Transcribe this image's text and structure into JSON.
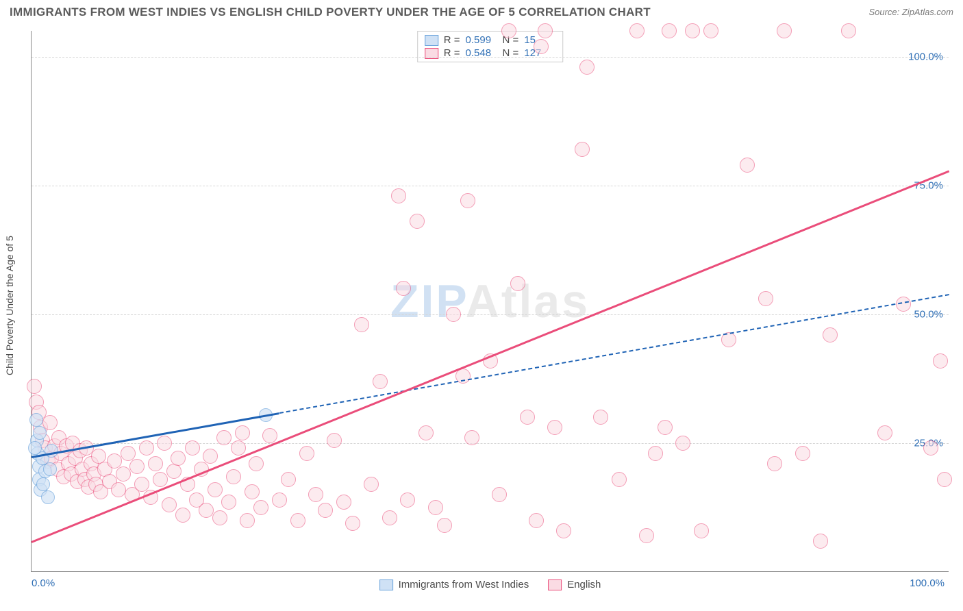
{
  "header": {
    "title": "IMMIGRANTS FROM WEST INDIES VS ENGLISH CHILD POVERTY UNDER THE AGE OF 5 CORRELATION CHART",
    "source_prefix": "Source: ",
    "source_name": "ZipAtlas.com"
  },
  "chart": {
    "type": "scatter",
    "xlim": [
      0,
      100
    ],
    "ylim": [
      0,
      105
    ],
    "ylabel": "Child Poverty Under the Age of 5",
    "grid_color": "#d6d6d6",
    "background_color": "#ffffff",
    "axis_color": "#888888",
    "yticks": [
      {
        "v": 25,
        "label": "25.0%"
      },
      {
        "v": 50,
        "label": "50.0%"
      },
      {
        "v": 75,
        "label": "75.0%"
      },
      {
        "v": 100,
        "label": "100.0%"
      }
    ],
    "xticks": [
      {
        "v": 0,
        "label": "0.0%",
        "align": "left"
      },
      {
        "v": 100,
        "label": "100.0%",
        "align": "right"
      }
    ],
    "watermark": {
      "z": "ZIP",
      "rest": "Atlas"
    },
    "series": [
      {
        "id": "west_indies",
        "label": "Immigrants from West Indies",
        "marker_fill": "#cfe1f5",
        "marker_stroke": "#6aa3dc",
        "marker_opacity": 0.65,
        "marker_r": 10,
        "trend_color": "#1f63b5",
        "trend_solid_end_x": 27,
        "trend_y_at_0": 22.5,
        "trend_y_at_100": 54,
        "R": "0.599",
        "N": "15",
        "points": [
          [
            0.5,
            29.5
          ],
          [
            0.6,
            25.5
          ],
          [
            0.7,
            23
          ],
          [
            0.8,
            20.5
          ],
          [
            0.8,
            18
          ],
          [
            1.0,
            16
          ],
          [
            1.2,
            22
          ],
          [
            1.5,
            19.5
          ],
          [
            1.3,
            17
          ],
          [
            1.8,
            14.5
          ],
          [
            0.4,
            24
          ],
          [
            0.9,
            27
          ],
          [
            2.0,
            20
          ],
          [
            2.2,
            23.5
          ],
          [
            25.5,
            30.5
          ]
        ]
      },
      {
        "id": "english",
        "label": "English",
        "marker_fill": "#fadbe3",
        "marker_stroke": "#ea4d7a",
        "marker_opacity": 0.55,
        "marker_r": 11,
        "trend_color": "#ea4d7a",
        "trend_solid_end_x": 100,
        "trend_y_at_0": 6,
        "trend_y_at_100": 78,
        "R": "0.548",
        "N": "127",
        "points": [
          [
            0.3,
            36
          ],
          [
            0.5,
            33
          ],
          [
            0.8,
            31
          ],
          [
            1.0,
            28
          ],
          [
            1.2,
            25.5
          ],
          [
            1.5,
            24
          ],
          [
            1.8,
            21.5
          ],
          [
            2.0,
            29
          ],
          [
            2.2,
            22
          ],
          [
            2.5,
            24.5
          ],
          [
            2.8,
            20
          ],
          [
            3.0,
            26
          ],
          [
            3.2,
            23
          ],
          [
            3.5,
            18.5
          ],
          [
            3.8,
            24.5
          ],
          [
            4.0,
            21
          ],
          [
            4.3,
            19
          ],
          [
            4.5,
            25
          ],
          [
            4.8,
            22
          ],
          [
            5.0,
            17.5
          ],
          [
            5.3,
            23.5
          ],
          [
            5.5,
            20
          ],
          [
            5.8,
            18
          ],
          [
            6.0,
            24
          ],
          [
            6.2,
            16.5
          ],
          [
            6.5,
            21
          ],
          [
            6.8,
            19
          ],
          [
            7.0,
            17
          ],
          [
            7.3,
            22.5
          ],
          [
            7.5,
            15.5
          ],
          [
            8.0,
            20
          ],
          [
            8.5,
            17.5
          ],
          [
            9.0,
            21.5
          ],
          [
            9.5,
            16
          ],
          [
            10.0,
            19
          ],
          [
            10.5,
            23
          ],
          [
            11.0,
            15
          ],
          [
            11.5,
            20.5
          ],
          [
            12.0,
            17
          ],
          [
            12.5,
            24
          ],
          [
            13.0,
            14.5
          ],
          [
            13.5,
            21
          ],
          [
            14.0,
            18
          ],
          [
            14.5,
            25
          ],
          [
            15.0,
            13
          ],
          [
            15.5,
            19.5
          ],
          [
            16.0,
            22
          ],
          [
            16.5,
            11
          ],
          [
            17.0,
            17
          ],
          [
            17.5,
            24
          ],
          [
            18.0,
            14
          ],
          [
            18.5,
            20
          ],
          [
            19.0,
            12
          ],
          [
            19.5,
            22.5
          ],
          [
            20.0,
            16
          ],
          [
            20.5,
            10.5
          ],
          [
            21.0,
            26
          ],
          [
            21.5,
            13.5
          ],
          [
            22.0,
            18.5
          ],
          [
            22.5,
            24
          ],
          [
            23.0,
            27
          ],
          [
            23.5,
            10
          ],
          [
            24.0,
            15.5
          ],
          [
            24.5,
            21
          ],
          [
            25.0,
            12.5
          ],
          [
            26.0,
            26.5
          ],
          [
            27.0,
            14
          ],
          [
            28.0,
            18
          ],
          [
            29.0,
            10
          ],
          [
            30.0,
            23
          ],
          [
            31.0,
            15
          ],
          [
            32.0,
            12
          ],
          [
            33.0,
            25.5
          ],
          [
            34.0,
            13.5
          ],
          [
            35.0,
            9.5
          ],
          [
            36.0,
            48
          ],
          [
            37.0,
            17
          ],
          [
            38.0,
            37
          ],
          [
            39.0,
            10.5
          ],
          [
            40.0,
            73
          ],
          [
            40.5,
            55
          ],
          [
            41.0,
            14
          ],
          [
            42.0,
            68
          ],
          [
            43.0,
            27
          ],
          [
            44.0,
            12.5
          ],
          [
            45.0,
            9
          ],
          [
            46.0,
            50
          ],
          [
            47.0,
            38
          ],
          [
            47.5,
            72
          ],
          [
            48.0,
            26
          ],
          [
            50.0,
            41
          ],
          [
            51.0,
            15
          ],
          [
            52.0,
            105
          ],
          [
            53.0,
            56
          ],
          [
            54.0,
            30
          ],
          [
            55.0,
            10
          ],
          [
            55.5,
            102
          ],
          [
            56.0,
            105
          ],
          [
            57.0,
            28
          ],
          [
            58.0,
            8
          ],
          [
            60.0,
            82
          ],
          [
            60.5,
            98
          ],
          [
            62.0,
            30
          ],
          [
            64.0,
            18
          ],
          [
            66.0,
            105
          ],
          [
            67.0,
            7
          ],
          [
            68.0,
            23
          ],
          [
            69.0,
            28
          ],
          [
            69.5,
            105
          ],
          [
            71.0,
            25
          ],
          [
            72.0,
            105
          ],
          [
            73.0,
            8
          ],
          [
            74.0,
            105
          ],
          [
            76.0,
            45
          ],
          [
            78.0,
            79
          ],
          [
            80.0,
            53
          ],
          [
            81.0,
            21
          ],
          [
            82.0,
            105
          ],
          [
            84.0,
            23
          ],
          [
            86.0,
            6
          ],
          [
            87.0,
            46
          ],
          [
            89.0,
            105
          ],
          [
            93.0,
            27
          ],
          [
            95.0,
            52
          ],
          [
            98.0,
            24
          ],
          [
            99.0,
            41
          ],
          [
            99.5,
            18
          ]
        ]
      }
    ],
    "legend_top": {
      "r_label": "R =",
      "n_label": "N ="
    }
  }
}
